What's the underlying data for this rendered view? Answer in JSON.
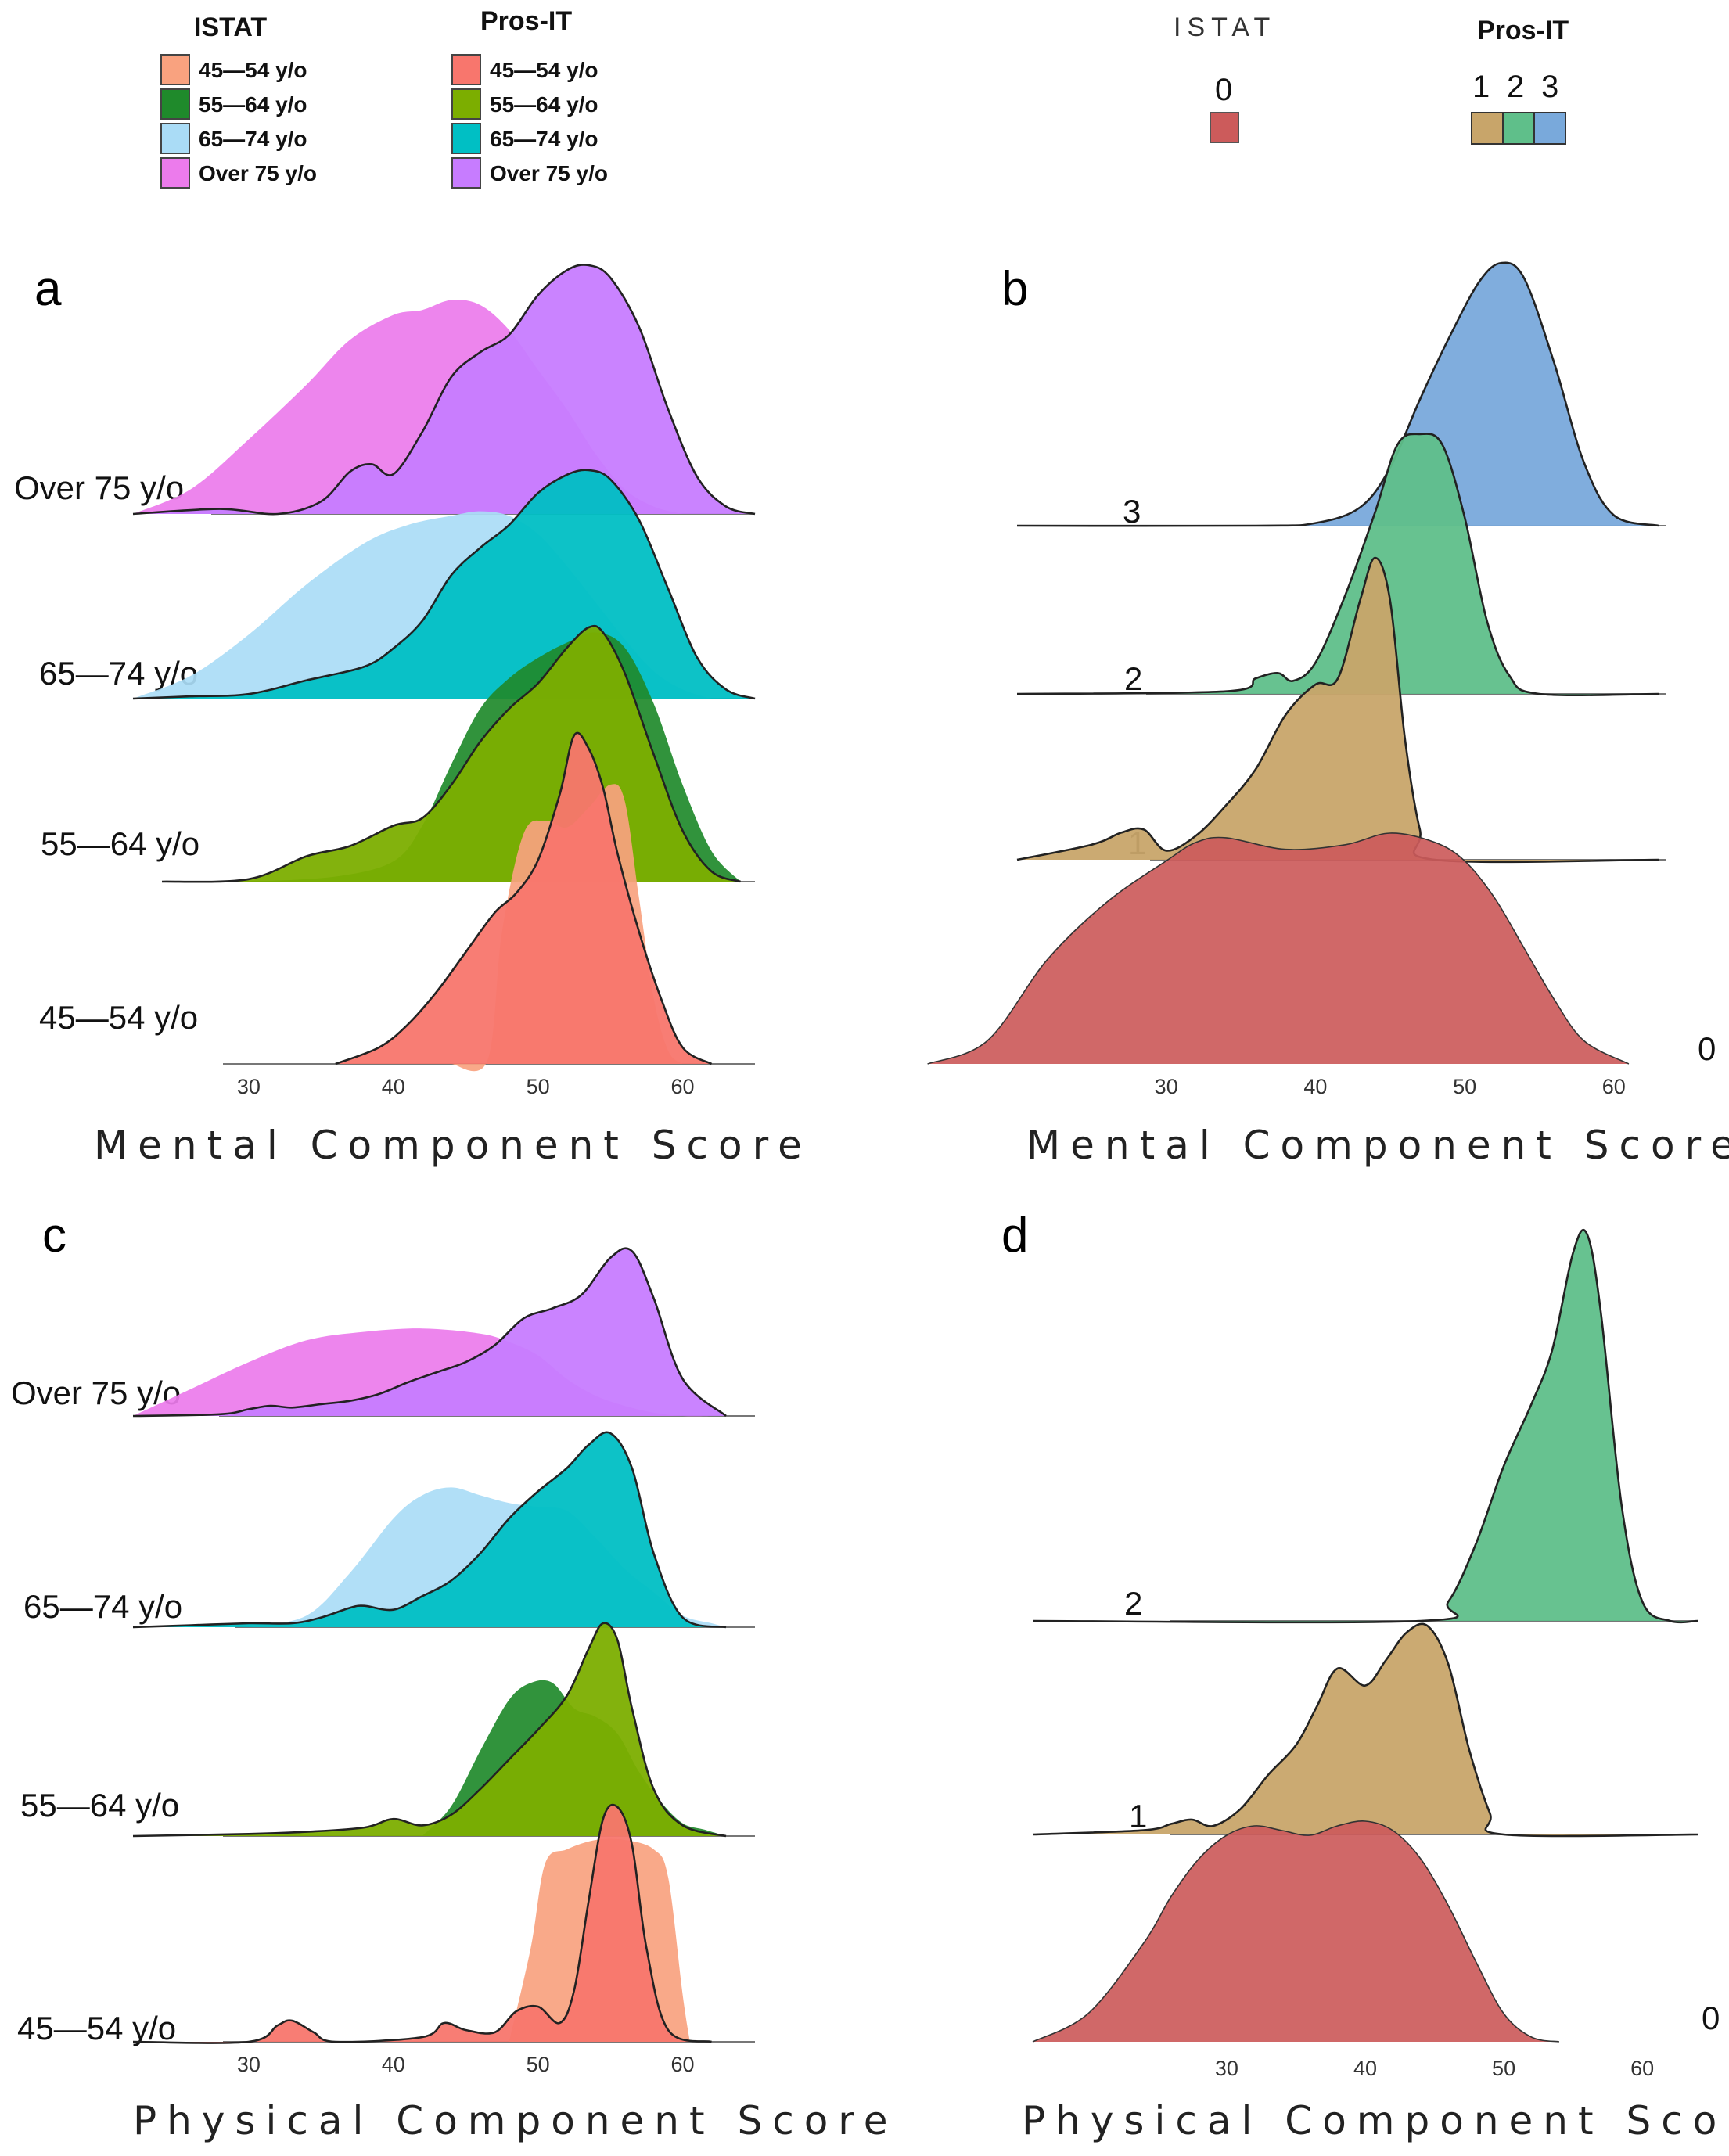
{
  "legends": {
    "left": {
      "istat_title": "ISTAT",
      "prosit_title": "Pros-IT",
      "istat_items": [
        {
          "label": "45—54 y/o",
          "color": "#f9a27f"
        },
        {
          "label": "55—64 y/o",
          "color": "#1f8a2b"
        },
        {
          "label": "65—74 y/o",
          "color": "#aadcf6"
        },
        {
          "label": "Over 75 y/o",
          "color": "#ec7bec"
        }
      ],
      "prosit_items": [
        {
          "label": "45—54 y/o",
          "color": "#f8766d"
        },
        {
          "label": "55—64 y/o",
          "color": "#7cae00"
        },
        {
          "label": "65—74 y/o",
          "color": "#00bfc4"
        },
        {
          "label": "Over 75 y/o",
          "color": "#c77cff"
        }
      ]
    },
    "right": {
      "istat_title": "ISTAT",
      "prosit_title": "Pros-IT",
      "istat_items": [
        {
          "label": "0",
          "color": "#cc5b5b"
        }
      ],
      "prosit_items": [
        {
          "label": "1",
          "color": "#c8a56a"
        },
        {
          "label": "2",
          "color": "#5fbf8a"
        },
        {
          "label": "3",
          "color": "#79a9db"
        }
      ]
    }
  },
  "chart_data": [
    {
      "panel": "a",
      "type": "ridgeline-density",
      "xlabel": "Mental Component Score",
      "ticks": [
        "30",
        "40",
        "50",
        "60"
      ],
      "tick_values": [
        30,
        40,
        50,
        60
      ],
      "xlim": [
        22,
        65
      ],
      "rows": [
        "Over 75 y/o",
        "65—74 y/o",
        "55—64 y/o",
        "45—54 y/o"
      ],
      "series": [
        {
          "row": "Over 75 y/o",
          "source": "ISTAT",
          "x": [
            22,
            26,
            30,
            34,
            37,
            40,
            42,
            44,
            46,
            48,
            50,
            52,
            54,
            56,
            58,
            60
          ],
          "y": [
            0,
            0.1,
            0.3,
            0.52,
            0.7,
            0.8,
            0.82,
            0.86,
            0.84,
            0.74,
            0.58,
            0.42,
            0.24,
            0.1,
            0.03,
            0
          ]
        },
        {
          "row": "Over 75 y/o",
          "source": "Pros-IT",
          "x": [
            22,
            28,
            32,
            35,
            37,
            38.5,
            40,
            42,
            44,
            46,
            48,
            50,
            52,
            53.5,
            55,
            57,
            59,
            61,
            63,
            65
          ],
          "y": [
            0,
            0.02,
            0,
            0.05,
            0.17,
            0.2,
            0.16,
            0.33,
            0.55,
            0.65,
            0.72,
            0.88,
            0.98,
            1.0,
            0.95,
            0.75,
            0.42,
            0.15,
            0.03,
            0
          ]
        },
        {
          "row": "65—74 y/o",
          "source": "ISTAT",
          "x": [
            22,
            26,
            30,
            34,
            38,
            41,
            44,
            46,
            48,
            50,
            52,
            54,
            56,
            58,
            60,
            62
          ],
          "y": [
            0,
            0.1,
            0.28,
            0.5,
            0.68,
            0.76,
            0.8,
            0.82,
            0.8,
            0.72,
            0.58,
            0.42,
            0.26,
            0.12,
            0.04,
            0
          ]
        },
        {
          "row": "65—74 y/o",
          "source": "Pros-IT",
          "x": [
            22,
            26,
            30,
            34,
            38,
            40,
            42,
            44,
            46,
            48,
            50,
            52,
            53.5,
            55,
            57,
            59,
            61,
            63,
            65
          ],
          "y": [
            0,
            0.01,
            0.02,
            0.08,
            0.14,
            0.22,
            0.34,
            0.54,
            0.66,
            0.76,
            0.9,
            0.98,
            1.0,
            0.96,
            0.78,
            0.48,
            0.18,
            0.04,
            0
          ]
        },
        {
          "row": "55—64 y/o",
          "source": "ISTAT",
          "x": [
            30,
            36,
            40,
            42,
            44,
            46,
            48,
            50,
            52,
            54,
            56,
            58,
            60,
            62,
            64
          ],
          "y": [
            0,
            0.02,
            0.08,
            0.22,
            0.46,
            0.68,
            0.8,
            0.88,
            0.94,
            0.98,
            0.92,
            0.7,
            0.38,
            0.12,
            0
          ]
        },
        {
          "row": "55—64 y/o",
          "source": "Pros-IT",
          "x": [
            24,
            30,
            34,
            37,
            40,
            42,
            44,
            46,
            48,
            50,
            52,
            53.5,
            54.5,
            56,
            58,
            60,
            62,
            64
          ],
          "y": [
            0,
            0.01,
            0.1,
            0.14,
            0.22,
            0.25,
            0.38,
            0.55,
            0.68,
            0.78,
            0.92,
            1.0,
            0.98,
            0.82,
            0.5,
            0.2,
            0.04,
            0
          ]
        },
        {
          "row": "45—54 y/o",
          "source": "ISTAT",
          "x": [
            44,
            46.5,
            47.5,
            49,
            50.5,
            52,
            53.5,
            55,
            56,
            57,
            58,
            59,
            60
          ],
          "y": [
            0,
            0.01,
            0.4,
            0.7,
            0.74,
            0.72,
            0.78,
            0.85,
            0.8,
            0.5,
            0.2,
            0.04,
            0
          ]
        },
        {
          "row": "45—54 y/o",
          "source": "Pros-IT",
          "x": [
            36,
            39,
            41,
            43,
            45,
            47,
            48.5,
            50,
            51.5,
            52.5,
            53.5,
            54.5,
            55.5,
            57,
            58.5,
            60,
            62
          ],
          "y": [
            0,
            0.05,
            0.12,
            0.22,
            0.34,
            0.46,
            0.52,
            0.62,
            0.82,
            1.0,
            0.96,
            0.84,
            0.64,
            0.4,
            0.2,
            0.05,
            0
          ]
        }
      ]
    },
    {
      "panel": "b",
      "type": "ridgeline-density",
      "xlabel": "Mental Component Score",
      "ticks": [
        "30",
        "40",
        "50",
        "60"
      ],
      "tick_values": [
        30,
        40,
        50,
        60
      ],
      "xlim": [
        20,
        63
      ],
      "rows": [
        "3",
        "2",
        "1",
        "0"
      ],
      "series": [
        {
          "row": "3",
          "source": "Pros-IT",
          "x": [
            20,
            36,
            40,
            43,
            45,
            47,
            49,
            51,
            52.5,
            54,
            56,
            58,
            60,
            63
          ],
          "y": [
            0,
            0,
            0.01,
            0.07,
            0.22,
            0.48,
            0.72,
            0.93,
            1.0,
            0.94,
            0.62,
            0.24,
            0.04,
            0
          ]
        },
        {
          "row": "2",
          "source": "Pros-IT",
          "x": [
            20,
            34,
            36,
            37.5,
            38.5,
            40,
            42,
            44,
            45.5,
            47,
            48.5,
            50,
            51.5,
            53,
            55,
            63
          ],
          "y": [
            0,
            0.01,
            0.06,
            0.08,
            0.05,
            0.12,
            0.38,
            0.7,
            0.96,
            1.0,
            0.96,
            0.68,
            0.28,
            0.07,
            0,
            0
          ]
        },
        {
          "row": "1",
          "source": "Pros-IT",
          "x": [
            20,
            25,
            27,
            28.5,
            30,
            32,
            34,
            36,
            38,
            40,
            41.5,
            43,
            44,
            45,
            46,
            47,
            48,
            63
          ],
          "y": [
            0,
            0.05,
            0.09,
            0.1,
            0.03,
            0.08,
            0.18,
            0.3,
            0.48,
            0.58,
            0.6,
            0.86,
            1.0,
            0.86,
            0.4,
            0.1,
            0,
            0
          ]
        },
        {
          "row": "0",
          "source": "ISTAT",
          "x": [
            14,
            18,
            22,
            26,
            30,
            32,
            34,
            38,
            42,
            45,
            48,
            50,
            52,
            54,
            56,
            58,
            61
          ],
          "y": [
            0,
            0.1,
            0.45,
            0.7,
            0.88,
            0.96,
            0.98,
            0.93,
            0.95,
            1.0,
            0.96,
            0.88,
            0.72,
            0.5,
            0.28,
            0.1,
            0
          ]
        }
      ]
    },
    {
      "panel": "c",
      "type": "ridgeline-density",
      "xlabel": "Physical Component Score",
      "ticks": [
        "30",
        "40",
        "50",
        "60"
      ],
      "tick_values": [
        30,
        40,
        50,
        60
      ],
      "xlim": [
        22,
        65
      ],
      "rows": [
        "Over 75 y/o",
        "65—74 y/o",
        "55—64 y/o",
        "45—54 y/o"
      ],
      "series": [
        {
          "row": "Over 75 y/o",
          "source": "ISTAT",
          "x": [
            22,
            26,
            30,
            34,
            38,
            42,
            46,
            48,
            50,
            52,
            54,
            56,
            58,
            60,
            62
          ],
          "y": [
            0,
            0.16,
            0.32,
            0.45,
            0.5,
            0.52,
            0.49,
            0.44,
            0.36,
            0.22,
            0.12,
            0.06,
            0.02,
            0,
            0
          ]
        },
        {
          "row": "Over 75 y/o",
          "source": "Pros-IT",
          "x": [
            22,
            28,
            30,
            31.5,
            33,
            35,
            37,
            39,
            41,
            43,
            45,
            47,
            49,
            51,
            53,
            55,
            56.5,
            58,
            60,
            63
          ],
          "y": [
            0,
            0.01,
            0.04,
            0.06,
            0.05,
            0.07,
            0.09,
            0.13,
            0.2,
            0.26,
            0.32,
            0.42,
            0.58,
            0.64,
            0.72,
            0.94,
            0.98,
            0.7,
            0.22,
            0
          ]
        },
        {
          "row": "65—74 y/o",
          "source": "ISTAT",
          "x": [
            30,
            34,
            37,
            40,
            42,
            44,
            46,
            48,
            50,
            52,
            54,
            56,
            58,
            60,
            62,
            63
          ],
          "y": [
            0,
            0.06,
            0.28,
            0.56,
            0.68,
            0.72,
            0.68,
            0.64,
            0.62,
            0.6,
            0.46,
            0.3,
            0.18,
            0.06,
            0.02,
            0
          ]
        },
        {
          "row": "65—74 y/o",
          "source": "Pros-IT",
          "x": [
            22,
            26,
            30,
            33,
            35,
            37,
            38,
            40,
            42,
            44,
            46,
            48,
            50,
            52,
            53.5,
            55,
            56.5,
            58,
            60,
            63
          ],
          "y": [
            0,
            0.01,
            0.02,
            0.02,
            0.05,
            0.1,
            0.11,
            0.09,
            0.16,
            0.24,
            0.38,
            0.56,
            0.7,
            0.82,
            0.94,
            1.0,
            0.82,
            0.38,
            0.05,
            0
          ]
        },
        {
          "row": "55—64 y/o",
          "source": "ISTAT",
          "x": [
            42,
            44,
            46,
            48,
            49.5,
            51,
            52.5,
            54,
            55.5,
            57,
            58.5,
            60,
            61.5,
            63
          ],
          "y": [
            0,
            0.14,
            0.4,
            0.64,
            0.72,
            0.72,
            0.6,
            0.56,
            0.48,
            0.3,
            0.16,
            0.06,
            0.03,
            0
          ]
        },
        {
          "row": "55—64 y/o",
          "source": "Pros-IT",
          "x": [
            22,
            30,
            34,
            38,
            40,
            42,
            44,
            46,
            48,
            50,
            52,
            53.5,
            54.5,
            55.5,
            56.5,
            58,
            60,
            63
          ],
          "y": [
            0,
            0.01,
            0.02,
            0.04,
            0.08,
            0.05,
            0.1,
            0.22,
            0.36,
            0.5,
            0.66,
            0.88,
            1.0,
            0.92,
            0.6,
            0.22,
            0.05,
            0
          ]
        },
        {
          "row": "45—54 y/o",
          "source": "ISTAT",
          "x": [
            48,
            49.5,
            50.5,
            52,
            54,
            56,
            58,
            59,
            60,
            60.5
          ],
          "y": [
            0,
            0.4,
            0.76,
            0.82,
            0.86,
            0.86,
            0.82,
            0.7,
            0.2,
            0
          ]
        },
        {
          "row": "45—54 y/o",
          "source": "Pros-IT",
          "x": [
            22,
            30,
            32,
            33,
            34.5,
            36,
            42,
            43.5,
            45,
            47,
            48.5,
            50,
            51.5,
            52.5,
            53.5,
            54.5,
            55.5,
            56.5,
            57.5,
            59,
            62
          ],
          "y": [
            0,
            0,
            0.07,
            0.09,
            0.04,
            0,
            0.02,
            0.08,
            0.05,
            0.04,
            0.13,
            0.15,
            0.08,
            0.22,
            0.6,
            0.95,
            1.0,
            0.84,
            0.4,
            0.05,
            0
          ]
        }
      ]
    },
    {
      "panel": "d",
      "type": "ridgeline-density",
      "xlabel": "Physical Component Score",
      "ticks": [
        "30",
        "40",
        "50",
        "60"
      ],
      "tick_values": [
        30,
        40,
        50,
        60
      ],
      "xlim": [
        16,
        64
      ],
      "rows": [
        "2",
        "1",
        "0"
      ],
      "series": [
        {
          "row": "2",
          "source": "Pros-IT",
          "x": [
            16,
            44,
            46,
            48,
            50,
            52,
            53.5,
            55,
            56,
            57,
            58.5,
            60,
            62,
            64
          ],
          "y": [
            0,
            0,
            0.05,
            0.2,
            0.4,
            0.56,
            0.7,
            0.95,
            1.0,
            0.8,
            0.3,
            0.05,
            0,
            0
          ]
        },
        {
          "row": "1",
          "source": "Pros-IT",
          "x": [
            16,
            24,
            26,
            27.5,
            29,
            31,
            33,
            35,
            36.5,
            38,
            40,
            41.5,
            43,
            44.5,
            46,
            47.5,
            49,
            50,
            64
          ],
          "y": [
            0,
            0.02,
            0.05,
            0.07,
            0.04,
            0.12,
            0.28,
            0.42,
            0.6,
            0.78,
            0.7,
            0.82,
            0.95,
            0.98,
            0.8,
            0.4,
            0.1,
            0,
            0
          ]
        },
        {
          "row": "0",
          "source": "ISTAT",
          "x": [
            16,
            20,
            24,
            26,
            28,
            30,
            32,
            34,
            36,
            38,
            40,
            42,
            44,
            46,
            48,
            50,
            52,
            54
          ],
          "y": [
            0,
            0.12,
            0.42,
            0.62,
            0.78,
            0.88,
            0.92,
            0.9,
            0.88,
            0.92,
            0.94,
            0.9,
            0.78,
            0.58,
            0.34,
            0.12,
            0.02,
            0
          ]
        }
      ]
    }
  ]
}
